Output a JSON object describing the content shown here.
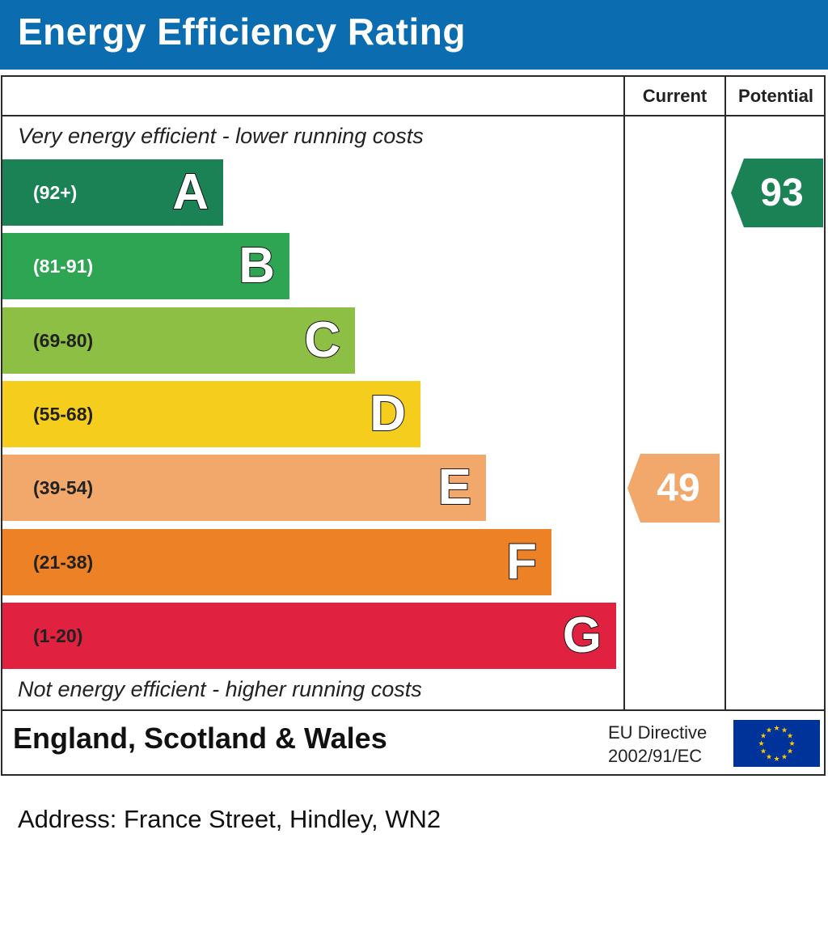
{
  "header": {
    "title": "Energy Efficiency Rating"
  },
  "columns": {
    "current": "Current",
    "potential": "Potential"
  },
  "captions": {
    "top": "Very energy efficient - lower running costs",
    "bottom": "Not energy efficient - higher running costs"
  },
  "footer": {
    "region": "England, Scotland & Wales",
    "directive_line1": "EU Directive",
    "directive_line2": "2002/91/EC"
  },
  "address": "Address: France Street, Hindley, WN2",
  "chart_data": {
    "type": "bar",
    "bands": [
      {
        "letter": "A",
        "range": "(92+)",
        "color": "#1a8254",
        "text_color": "#ffffff"
      },
      {
        "letter": "B",
        "range": "(81-91)",
        "color": "#2da553",
        "text_color": "#ffffff"
      },
      {
        "letter": "C",
        "range": "(69-80)",
        "color": "#8dbf44",
        "text_color": "#222222"
      },
      {
        "letter": "D",
        "range": "(55-68)",
        "color": "#f5cd1c",
        "text_color": "#222222"
      },
      {
        "letter": "E",
        "range": "(39-54)",
        "color": "#f3a86b",
        "text_color": "#222222"
      },
      {
        "letter": "F",
        "range": "(21-38)",
        "color": "#ec8125",
        "text_color": "#222222"
      },
      {
        "letter": "G",
        "range": "(1-20)",
        "color": "#e0213f",
        "text_color": "#222222"
      }
    ],
    "current": {
      "value": "49",
      "band": "E",
      "color": "#f3a86b"
    },
    "potential": {
      "value": "93",
      "band": "A",
      "color": "#1a8254"
    }
  }
}
